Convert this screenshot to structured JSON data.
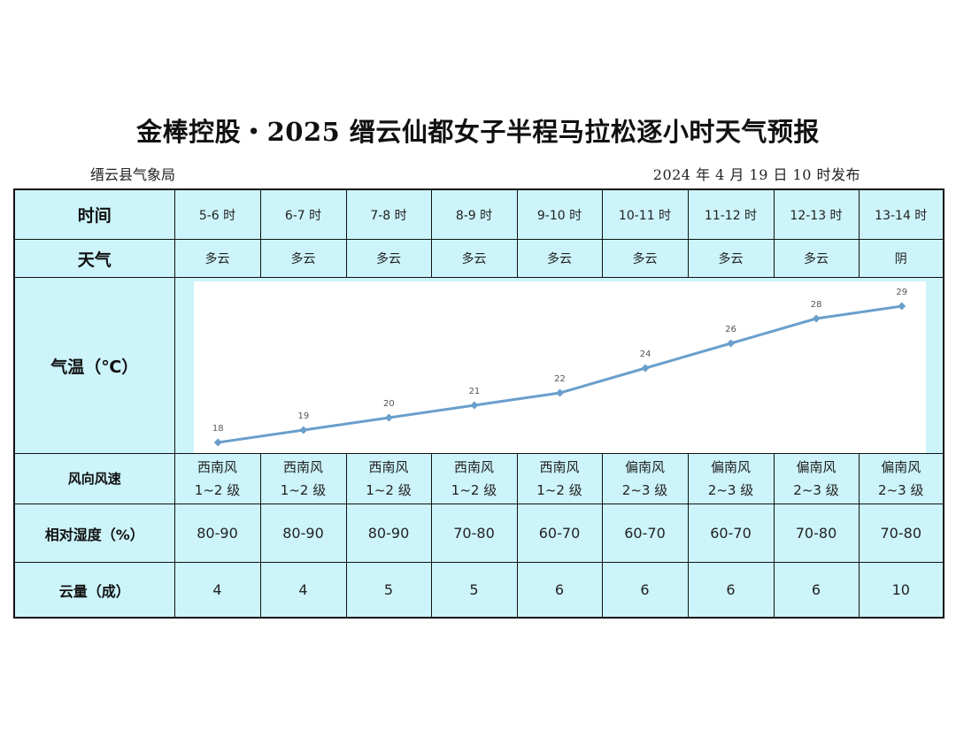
{
  "header": {
    "title": "金棒控股・2025 缙云仙都女子半程马拉松逐小时天气预报",
    "issuer": "缙云县气象局",
    "issued": "2024 年 4 月 19 日 10 时发布"
  },
  "rows": {
    "time_label": "时间",
    "weather_label": "天气",
    "temp_label": "气温（℃）",
    "wind_label": "风向风速",
    "humidity_label": "相对湿度（%）",
    "cloud_label": "云量（成）"
  },
  "columns": [
    {
      "time": "5-6 时",
      "weather": "多云",
      "wind_dir": "西南风",
      "wind_level": "1~2 级",
      "humidity": "80-90",
      "cloud": "4"
    },
    {
      "time": "6-7 时",
      "weather": "多云",
      "wind_dir": "西南风",
      "wind_level": "1~2 级",
      "humidity": "80-90",
      "cloud": "4"
    },
    {
      "time": "7-8 时",
      "weather": "多云",
      "wind_dir": "西南风",
      "wind_level": "1~2 级",
      "humidity": "80-90",
      "cloud": "5"
    },
    {
      "time": "8-9 时",
      "weather": "多云",
      "wind_dir": "西南风",
      "wind_level": "1~2 级",
      "humidity": "70-80",
      "cloud": "5"
    },
    {
      "time": "9-10 时",
      "weather": "多云",
      "wind_dir": "西南风",
      "wind_level": "1~2 级",
      "humidity": "60-70",
      "cloud": "6"
    },
    {
      "time": "10-11 时",
      "weather": "多云",
      "wind_dir": "偏南风",
      "wind_level": "2~3 级",
      "humidity": "60-70",
      "cloud": "6"
    },
    {
      "time": "11-12 时",
      "weather": "多云",
      "wind_dir": "偏南风",
      "wind_level": "2~3 级",
      "humidity": "60-70",
      "cloud": "6"
    },
    {
      "time": "12-13 时",
      "weather": "多云",
      "wind_dir": "偏南风",
      "wind_level": "2~3 级",
      "humidity": "70-80",
      "cloud": "6"
    },
    {
      "time": "13-14 时",
      "weather": "阴",
      "wind_dir": "偏南风",
      "wind_level": "2~3 级",
      "humidity": "70-80",
      "cloud": "10"
    }
  ],
  "chart_data": {
    "type": "line",
    "categories": [
      "5-6 时",
      "6-7 时",
      "7-8 时",
      "8-9 时",
      "9-10 时",
      "10-11 时",
      "11-12 时",
      "12-13 时",
      "13-14 时"
    ],
    "values": [
      18,
      19,
      20,
      21,
      22,
      24,
      26,
      28,
      29
    ],
    "title": "",
    "ylabel": "气温（℃）",
    "ylim": [
      17,
      30
    ],
    "grid": false,
    "colors": {
      "line": "#6a9fcc",
      "plot_background": "#ffffff",
      "label": "#555555"
    }
  },
  "colors": {
    "table_background": "#ccf4fa",
    "border": "#111111"
  }
}
